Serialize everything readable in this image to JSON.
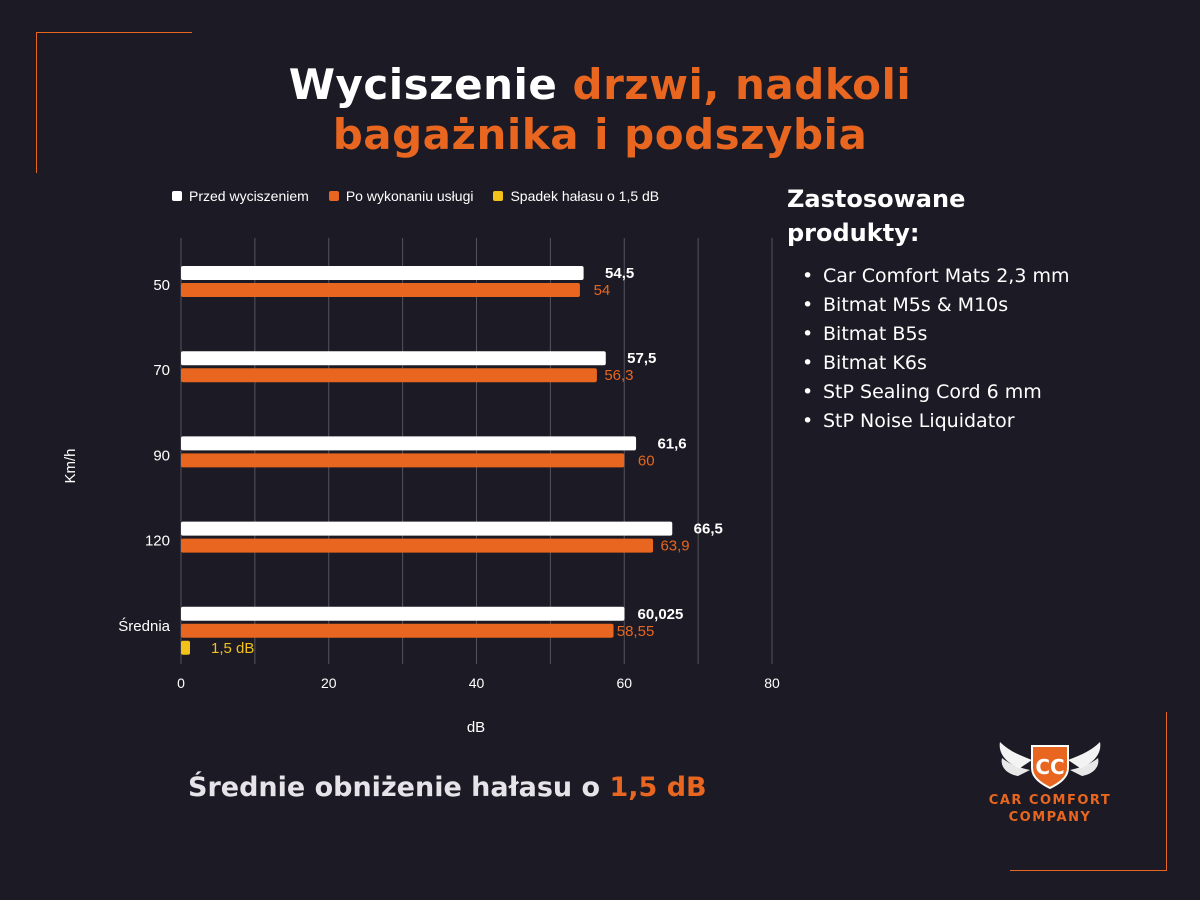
{
  "title": {
    "line1_white": "Wyciszenie",
    "line1_orange": "drzwi, nadkoli",
    "line2_orange": "bagażnika i podszybia"
  },
  "products": {
    "heading": "Zastosowane produkty:",
    "items": [
      "Car Comfort Mats 2,3 mm",
      "Bitmat M5s & M10s",
      "Bitmat B5s",
      "Bitmat K6s",
      "StP Sealing Cord 6 mm",
      "StP Noise Liquidator"
    ]
  },
  "summary": {
    "text": "Średnie obniżenie hałasu o",
    "value": "1,5 dB"
  },
  "logo": {
    "monogram": "CC",
    "name_line1": "CAR COMFORT",
    "name_line2": "COMPANY"
  },
  "colors": {
    "background": "#1c1a24",
    "accent": "#e8661f",
    "bar_before": "#ffffff",
    "bar_after": "#e8661f",
    "bar_drop": "#f2c21b"
  },
  "chart_data": {
    "type": "bar",
    "orientation": "horizontal",
    "categories": [
      "50",
      "70",
      "90",
      "120",
      "Średnia"
    ],
    "series": [
      {
        "name": "Przed wyciszeniem",
        "color": "#ffffff",
        "values": [
          54.5,
          57.5,
          61.6,
          66.5,
          60.025
        ],
        "labels": [
          "54,5",
          "57,5",
          "61,6",
          "66,5",
          "60,025"
        ]
      },
      {
        "name": "Po wykonaniu usługi",
        "color": "#e8661f",
        "values": [
          54,
          56.3,
          60,
          63.9,
          58.55
        ],
        "labels": [
          "54",
          "56,3",
          "60",
          "63,9",
          "58,55"
        ]
      },
      {
        "name": "Spadek hałasu o 1,5 dB",
        "color": "#f2c21b",
        "values": [
          null,
          null,
          null,
          null,
          1.5
        ],
        "labels": [
          "",
          "",
          "",
          "",
          "1,5 dB"
        ]
      }
    ],
    "xlabel": "dB",
    "ylabel": "Km/h",
    "xlim": [
      0,
      80
    ],
    "xticks": [
      0,
      20,
      40,
      60,
      80
    ],
    "grid": true,
    "legend_position": "top"
  }
}
